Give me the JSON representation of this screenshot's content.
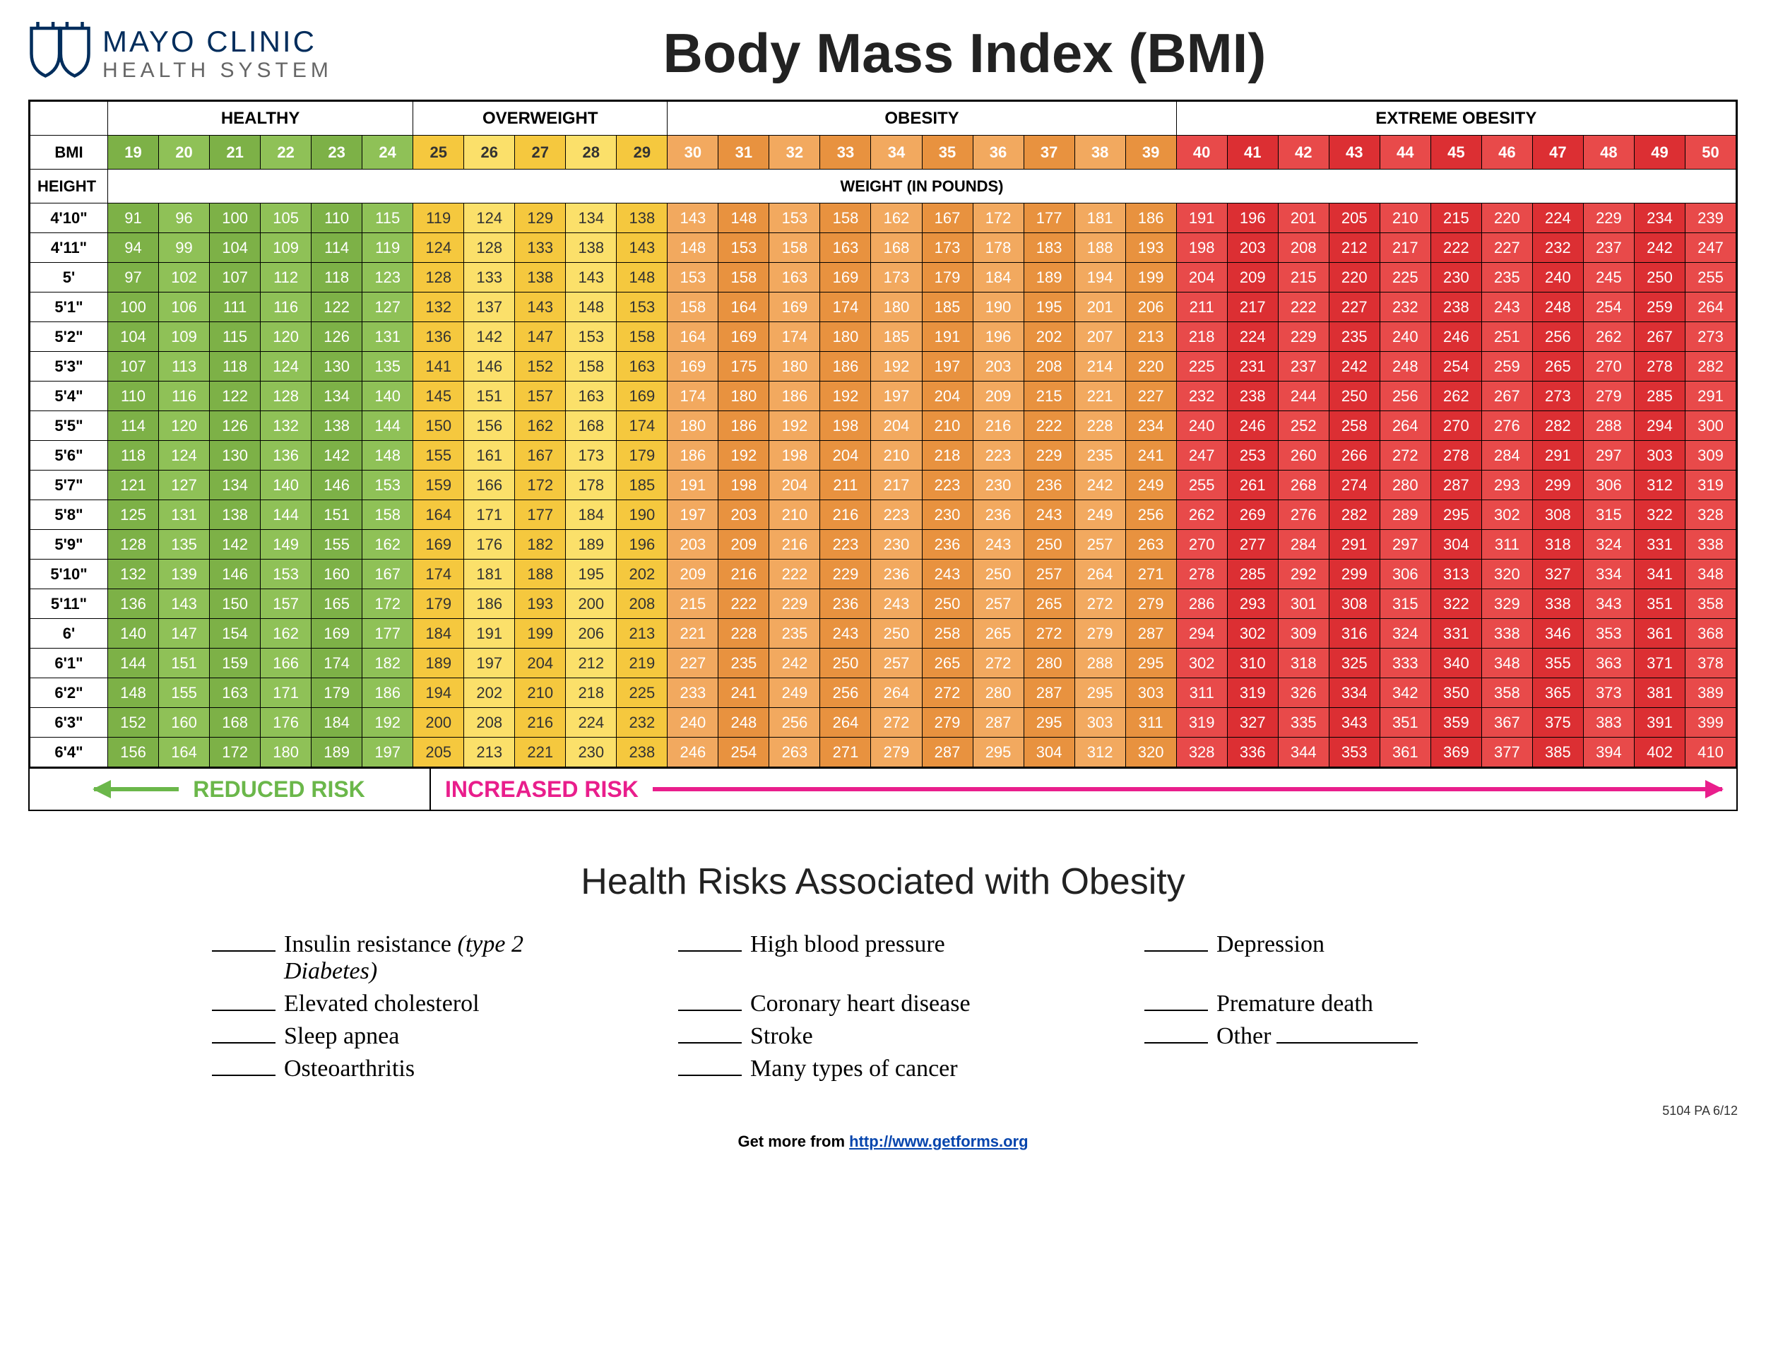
{
  "logo": {
    "line1": "MAYO CLINIC",
    "line2": "HEALTH SYSTEM"
  },
  "title": "Body Mass Index (BMI)",
  "categories": [
    {
      "label": "HEALTHY",
      "span": 6,
      "color": "#8bc34a",
      "text": "#ffffff"
    },
    {
      "label": "OVERWEIGHT",
      "span": 5,
      "color": "#fdd835",
      "text": "#333333"
    },
    {
      "label": "OBESITY",
      "span": 10,
      "color": "#ef9b4f",
      "text": "#ffffff"
    },
    {
      "label": "EXTREME OBESITY",
      "span": 11,
      "color": "#e53237",
      "text": "#ffffff"
    }
  ],
  "colors": {
    "healthy": {
      "odd": "#7db147",
      "even": "#8fc157"
    },
    "overweight": {
      "odd": "#f5c83e",
      "even": "#fbe06a"
    },
    "obesity": {
      "odd": "#e8923f",
      "even": "#f2a95f"
    },
    "extreme": {
      "odd": "#dc2f33",
      "even": "#e84a4a"
    }
  },
  "bmi_label": "BMI",
  "height_label": "HEIGHT",
  "weight_label": "WEIGHT  (IN POUNDS)",
  "bmi_values": [
    19,
    20,
    21,
    22,
    23,
    24,
    25,
    26,
    27,
    28,
    29,
    30,
    31,
    32,
    33,
    34,
    35,
    36,
    37,
    38,
    39,
    40,
    41,
    42,
    43,
    44,
    45,
    46,
    47,
    48,
    49,
    50
  ],
  "heights": [
    "4'10\"",
    "4'11\"",
    "5'",
    "5'1\"",
    "5'2\"",
    "5'3\"",
    "5'4\"",
    "5'5\"",
    "5'6\"",
    "5'7\"",
    "5'8\"",
    "5'9\"",
    "5'10\"",
    "5'11\"",
    "6'",
    "6'1\"",
    "6'2\"",
    "6'3\"",
    "6'4\""
  ],
  "weights": [
    [
      91,
      96,
      100,
      105,
      110,
      115,
      119,
      124,
      129,
      134,
      138,
      143,
      148,
      153,
      158,
      162,
      167,
      172,
      177,
      181,
      186,
      191,
      196,
      201,
      205,
      210,
      215,
      220,
      224,
      229,
      234,
      239
    ],
    [
      94,
      99,
      104,
      109,
      114,
      119,
      124,
      128,
      133,
      138,
      143,
      148,
      153,
      158,
      163,
      168,
      173,
      178,
      183,
      188,
      193,
      198,
      203,
      208,
      212,
      217,
      222,
      227,
      232,
      237,
      242,
      247
    ],
    [
      97,
      102,
      107,
      112,
      118,
      123,
      128,
      133,
      138,
      143,
      148,
      153,
      158,
      163,
      169,
      173,
      179,
      184,
      189,
      194,
      199,
      204,
      209,
      215,
      220,
      225,
      230,
      235,
      240,
      245,
      250,
      255
    ],
    [
      100,
      106,
      111,
      116,
      122,
      127,
      132,
      137,
      143,
      148,
      153,
      158,
      164,
      169,
      174,
      180,
      185,
      190,
      195,
      201,
      206,
      211,
      217,
      222,
      227,
      232,
      238,
      243,
      248,
      254,
      259,
      264
    ],
    [
      104,
      109,
      115,
      120,
      126,
      131,
      136,
      142,
      147,
      153,
      158,
      164,
      169,
      174,
      180,
      185,
      191,
      196,
      202,
      207,
      213,
      218,
      224,
      229,
      235,
      240,
      246,
      251,
      256,
      262,
      267,
      273
    ],
    [
      107,
      113,
      118,
      124,
      130,
      135,
      141,
      146,
      152,
      158,
      163,
      169,
      175,
      180,
      186,
      192,
      197,
      203,
      208,
      214,
      220,
      225,
      231,
      237,
      242,
      248,
      254,
      259,
      265,
      270,
      278,
      282
    ],
    [
      110,
      116,
      122,
      128,
      134,
      140,
      145,
      151,
      157,
      163,
      169,
      174,
      180,
      186,
      192,
      197,
      204,
      209,
      215,
      221,
      227,
      232,
      238,
      244,
      250,
      256,
      262,
      267,
      273,
      279,
      285,
      291
    ],
    [
      114,
      120,
      126,
      132,
      138,
      144,
      150,
      156,
      162,
      168,
      174,
      180,
      186,
      192,
      198,
      204,
      210,
      216,
      222,
      228,
      234,
      240,
      246,
      252,
      258,
      264,
      270,
      276,
      282,
      288,
      294,
      300
    ],
    [
      118,
      124,
      130,
      136,
      142,
      148,
      155,
      161,
      167,
      173,
      179,
      186,
      192,
      198,
      204,
      210,
      218,
      223,
      229,
      235,
      241,
      247,
      253,
      260,
      266,
      272,
      278,
      284,
      291,
      297,
      303,
      309
    ],
    [
      121,
      127,
      134,
      140,
      146,
      153,
      159,
      166,
      172,
      178,
      185,
      191,
      198,
      204,
      211,
      217,
      223,
      230,
      236,
      242,
      249,
      255,
      261,
      268,
      274,
      280,
      287,
      293,
      299,
      306,
      312,
      319
    ],
    [
      125,
      131,
      138,
      144,
      151,
      158,
      164,
      171,
      177,
      184,
      190,
      197,
      203,
      210,
      216,
      223,
      230,
      236,
      243,
      249,
      256,
      262,
      269,
      276,
      282,
      289,
      295,
      302,
      308,
      315,
      322,
      328
    ],
    [
      128,
      135,
      142,
      149,
      155,
      162,
      169,
      176,
      182,
      189,
      196,
      203,
      209,
      216,
      223,
      230,
      236,
      243,
      250,
      257,
      263,
      270,
      277,
      284,
      291,
      297,
      304,
      311,
      318,
      324,
      331,
      338
    ],
    [
      132,
      139,
      146,
      153,
      160,
      167,
      174,
      181,
      188,
      195,
      202,
      209,
      216,
      222,
      229,
      236,
      243,
      250,
      257,
      264,
      271,
      278,
      285,
      292,
      299,
      306,
      313,
      320,
      327,
      334,
      341,
      348
    ],
    [
      136,
      143,
      150,
      157,
      165,
      172,
      179,
      186,
      193,
      200,
      208,
      215,
      222,
      229,
      236,
      243,
      250,
      257,
      265,
      272,
      279,
      286,
      293,
      301,
      308,
      315,
      322,
      329,
      338,
      343,
      351,
      358
    ],
    [
      140,
      147,
      154,
      162,
      169,
      177,
      184,
      191,
      199,
      206,
      213,
      221,
      228,
      235,
      243,
      250,
      258,
      265,
      272,
      279,
      287,
      294,
      302,
      309,
      316,
      324,
      331,
      338,
      346,
      353,
      361,
      368
    ],
    [
      144,
      151,
      159,
      166,
      174,
      182,
      189,
      197,
      204,
      212,
      219,
      227,
      235,
      242,
      250,
      257,
      265,
      272,
      280,
      288,
      295,
      302,
      310,
      318,
      325,
      333,
      340,
      348,
      355,
      363,
      371,
      378
    ],
    [
      148,
      155,
      163,
      171,
      179,
      186,
      194,
      202,
      210,
      218,
      225,
      233,
      241,
      249,
      256,
      264,
      272,
      280,
      287,
      295,
      303,
      311,
      319,
      326,
      334,
      342,
      350,
      358,
      365,
      373,
      381,
      389
    ],
    [
      152,
      160,
      168,
      176,
      184,
      192,
      200,
      208,
      216,
      224,
      232,
      240,
      248,
      256,
      264,
      272,
      279,
      287,
      295,
      303,
      311,
      319,
      327,
      335,
      343,
      351,
      359,
      367,
      375,
      383,
      391,
      399
    ],
    [
      156,
      164,
      172,
      180,
      189,
      197,
      205,
      213,
      221,
      230,
      238,
      246,
      254,
      263,
      271,
      279,
      287,
      295,
      304,
      312,
      320,
      328,
      336,
      344,
      353,
      361,
      369,
      377,
      385,
      394,
      402,
      410
    ]
  ],
  "risk_bar": {
    "reduced": "REDUCED RISK",
    "increased": "INCREASED RISK"
  },
  "risks_title": "Health Risks Associated with Obesity",
  "risks": [
    {
      "text": "Insulin resistance ",
      "ital": "(type 2 Diabetes)"
    },
    {
      "text": "High blood pressure"
    },
    {
      "text": "Depression"
    },
    {
      "text": "Elevated cholesterol"
    },
    {
      "text": "Coronary heart disease"
    },
    {
      "text": "Premature death"
    },
    {
      "text": "Sleep apnea"
    },
    {
      "text": "Stroke"
    },
    {
      "text": "Other",
      "trail": true
    },
    {
      "text": "Osteoarthritis"
    },
    {
      "text": "Many types of cancer"
    }
  ],
  "footer_code": "5104 PA  6/12",
  "footer_link_prefix": "Get more from ",
  "footer_link": "http://www.getforms.org"
}
